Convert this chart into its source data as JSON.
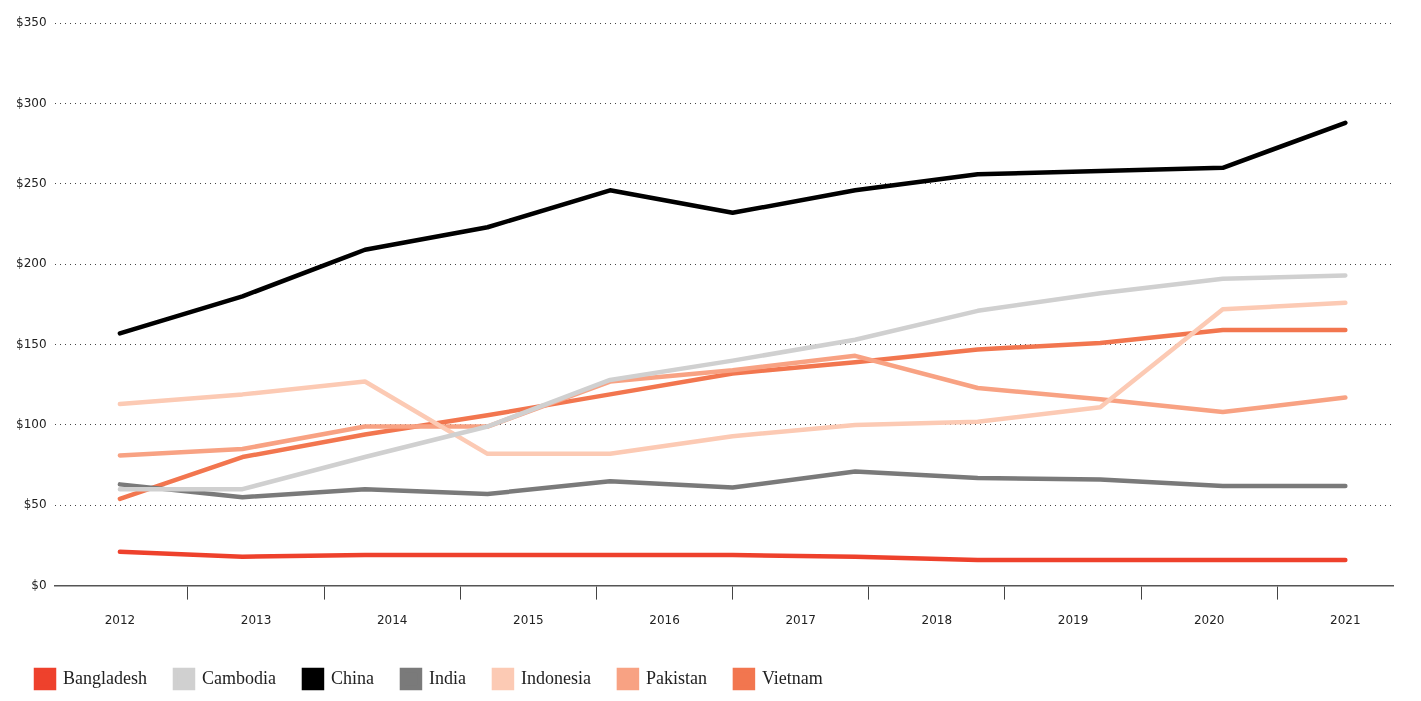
{
  "chart_data": {
    "type": "line",
    "x": [
      2012,
      2012.9,
      2013.8,
      2014.7,
      2015.6,
      2016.5,
      2017.4,
      2018.3,
      2019.2,
      2020.1,
      2021
    ],
    "xlim": [
      2011.52,
      2021.35
    ],
    "xticks": [
      2012,
      {
        "value": 2012.5,
        "label": null
      },
      2013,
      {
        "value": 2013.5,
        "label": null
      },
      2014,
      {
        "value": 2014.5,
        "label": null
      },
      2015,
      {
        "value": 2015.5,
        "label": null
      },
      2016,
      {
        "value": 2016.5,
        "label": null
      },
      2017,
      {
        "value": 2017.5,
        "label": null
      },
      2018,
      {
        "value": 2018.5,
        "label": null
      },
      2019,
      {
        "value": 2019.5,
        "label": null
      },
      2020,
      {
        "value": 2020.5,
        "label": null
      },
      2021
    ],
    "ylim": [
      0,
      350
    ],
    "yticks": [
      {
        "value": 0,
        "label": "$0"
      },
      {
        "value": 50,
        "label": "$50"
      },
      {
        "value": 100,
        "label": "$100"
      },
      {
        "value": 150,
        "label": "$150"
      },
      {
        "value": 200,
        "label": "$200"
      },
      {
        "value": 250,
        "label": "$250"
      },
      {
        "value": 300,
        "label": "$300"
      },
      {
        "value": 350,
        "label": "$350"
      }
    ],
    "grid": "y",
    "legend": "bottom left",
    "marker": "none",
    "line_style": "solid",
    "series": [
      {
        "name": "Bangladesh",
        "color": "#ee412c",
        "values": [
          21,
          18,
          19,
          19,
          19,
          19,
          18,
          16,
          16,
          16,
          16
        ]
      },
      {
        "name": "Cambodia",
        "color": "#d0d0d0",
        "values": [
          60,
          60,
          80,
          99,
          128,
          140,
          153,
          171,
          182,
          191,
          193
        ]
      },
      {
        "name": "China",
        "color": "#000000",
        "values": [
          157,
          180,
          209,
          223,
          246,
          232,
          246,
          256,
          258,
          260,
          288
        ]
      },
      {
        "name": "India",
        "color": "#7a7a7a",
        "values": [
          63,
          55,
          60,
          57,
          65,
          61,
          71,
          67,
          66,
          62,
          62
        ]
      },
      {
        "name": "Indonesia",
        "color": "#fccab4",
        "values": [
          113,
          119,
          127,
          82,
          82,
          93,
          100,
          102,
          111,
          172,
          176
        ]
      },
      {
        "name": "Pakistan",
        "color": "#f8a283",
        "values": [
          81,
          85,
          99,
          99,
          127,
          134,
          143,
          123,
          116,
          108,
          117
        ]
      },
      {
        "name": "Vietnam",
        "color": "#f2764f",
        "values": [
          54,
          80,
          94,
          106,
          119,
          132,
          139,
          147,
          151,
          159,
          159
        ]
      }
    ]
  }
}
